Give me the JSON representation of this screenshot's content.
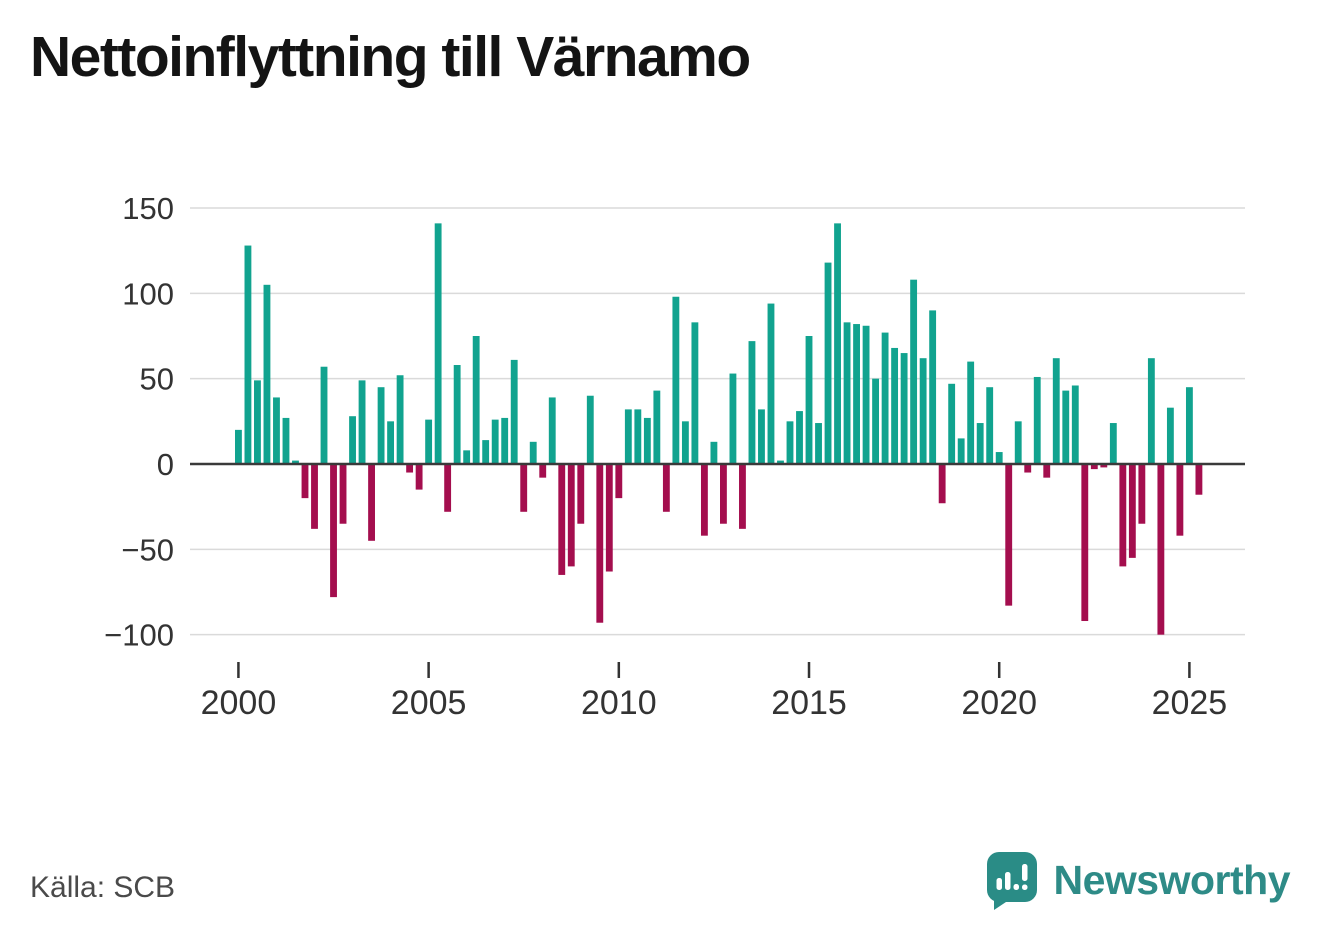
{
  "title": "Nettoinflyttning till Värnamo",
  "source": "Källa: SCB",
  "logo": {
    "brand": "Newsworthy",
    "color": "#2E8B87"
  },
  "chart_data": {
    "type": "bar",
    "title": "Nettoinflyttning till Värnamo",
    "xlabel": "",
    "ylabel": "",
    "ylim": [
      -115,
      155
    ],
    "grid": true,
    "y_ticks": [
      150,
      100,
      50,
      0,
      -50,
      -100
    ],
    "x_tick_labels": [
      "2000",
      "2005",
      "2010",
      "2015",
      "2020",
      "2025"
    ],
    "x_tick_indices": [
      0,
      20,
      40,
      60,
      80,
      100
    ],
    "colors": {
      "positive": "#11A38F",
      "negative": "#A40E4E"
    },
    "gridline_color": "#DADADA",
    "zero_line_color": "#3A3A3A",
    "categories": [
      "2000Q1",
      "2000Q2",
      "2000Q3",
      "2000Q4",
      "2001Q1",
      "2001Q2",
      "2001Q3",
      "2001Q4",
      "2002Q1",
      "2002Q2",
      "2002Q3",
      "2002Q4",
      "2003Q1",
      "2003Q2",
      "2003Q3",
      "2003Q4",
      "2004Q1",
      "2004Q2",
      "2004Q3",
      "2004Q4",
      "2005Q1",
      "2005Q2",
      "2005Q3",
      "2005Q4",
      "2006Q1",
      "2006Q2",
      "2006Q3",
      "2006Q4",
      "2007Q1",
      "2007Q2",
      "2007Q3",
      "2007Q4",
      "2008Q1",
      "2008Q2",
      "2008Q3",
      "2008Q4",
      "2009Q1",
      "2009Q2",
      "2009Q3",
      "2009Q4",
      "2010Q1",
      "2010Q2",
      "2010Q3",
      "2010Q4",
      "2011Q1",
      "2011Q2",
      "2011Q3",
      "2011Q4",
      "2012Q1",
      "2012Q2",
      "2012Q3",
      "2012Q4",
      "2013Q1",
      "2013Q2",
      "2013Q3",
      "2013Q4",
      "2014Q1",
      "2014Q2",
      "2014Q3",
      "2014Q4",
      "2015Q1",
      "2015Q2",
      "2015Q3",
      "2015Q4",
      "2016Q1",
      "2016Q2",
      "2016Q3",
      "2016Q4",
      "2017Q1",
      "2017Q2",
      "2017Q3",
      "2017Q4",
      "2018Q1",
      "2018Q2",
      "2018Q3",
      "2018Q4",
      "2019Q1",
      "2019Q2",
      "2019Q3",
      "2019Q4",
      "2020Q1",
      "2020Q2",
      "2020Q3",
      "2020Q4",
      "2021Q1",
      "2021Q2",
      "2021Q3",
      "2021Q4",
      "2022Q1",
      "2022Q2",
      "2022Q3",
      "2022Q4",
      "2023Q1",
      "2023Q2",
      "2023Q3",
      "2023Q4",
      "2024Q1",
      "2024Q2",
      "2024Q3",
      "2024Q4",
      "2025Q1",
      "2025Q2"
    ],
    "values": [
      20,
      128,
      49,
      105,
      39,
      27,
      2,
      -20,
      -38,
      57,
      -78,
      -35,
      28,
      49,
      -45,
      45,
      25,
      52,
      -5,
      -15,
      26,
      141,
      -28,
      58,
      8,
      75,
      14,
      26,
      27,
      61,
      -28,
      13,
      -8,
      39,
      -65,
      -60,
      -35,
      40,
      -93,
      -63,
      -20,
      32,
      32,
      27,
      43,
      -28,
      98,
      25,
      83,
      -42,
      13,
      -35,
      53,
      -38,
      72,
      32,
      94,
      2,
      25,
      31,
      75,
      24,
      118,
      141,
      83,
      82,
      81,
      50,
      77,
      68,
      65,
      108,
      62,
      90,
      -23,
      47,
      15,
      60,
      24,
      45,
      7,
      -83,
      25,
      -5,
      51,
      -8,
      62,
      43,
      46,
      -92,
      -3,
      -2,
      24,
      -60,
      -55,
      -35,
      62,
      -100,
      33,
      -42,
      45,
      -18
    ]
  }
}
